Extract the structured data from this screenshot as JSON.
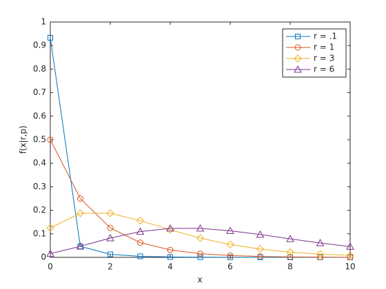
{
  "chart_data": {
    "type": "line",
    "x_label": "x",
    "y_label": "f(x|r,p)",
    "x": [
      0,
      1,
      2,
      3,
      4,
      5,
      6,
      7,
      8,
      9,
      10
    ],
    "series": [
      {
        "name": "r = .1",
        "color": "#0072bd",
        "marker": "square",
        "values": [
          0.933,
          0.0467,
          0.0128,
          0.0045,
          0.0017,
          0.0007,
          0.0003,
          0.0001,
          0,
          0,
          0
        ]
      },
      {
        "name": "r = 1",
        "color": "#d95319",
        "marker": "circle",
        "values": [
          0.5,
          0.25,
          0.125,
          0.0625,
          0.0313,
          0.0156,
          0.0078,
          0.0039,
          0.002,
          0.001,
          0.0005
        ]
      },
      {
        "name": "r = 3",
        "color": "#edb120",
        "marker": "diamond",
        "values": [
          0.125,
          0.1875,
          0.1875,
          0.1563,
          0.1172,
          0.082,
          0.0547,
          0.0352,
          0.022,
          0.0134,
          0.0081
        ]
      },
      {
        "name": "r = 6",
        "color": "#7e2f8e",
        "marker": "triangle",
        "values": [
          0.0156,
          0.0469,
          0.082,
          0.1094,
          0.123,
          0.123,
          0.1128,
          0.0967,
          0.0786,
          0.0611,
          0.0458
        ]
      }
    ],
    "xlim": [
      0,
      10
    ],
    "xticks": [
      0,
      2,
      4,
      6,
      8,
      10
    ],
    "ylim": [
      0,
      1
    ],
    "yticks": [
      0,
      0.1,
      0.2,
      0.3,
      0.4,
      0.5,
      0.6,
      0.7,
      0.8,
      0.9,
      1
    ],
    "grid": false,
    "legend": "northeast"
  }
}
